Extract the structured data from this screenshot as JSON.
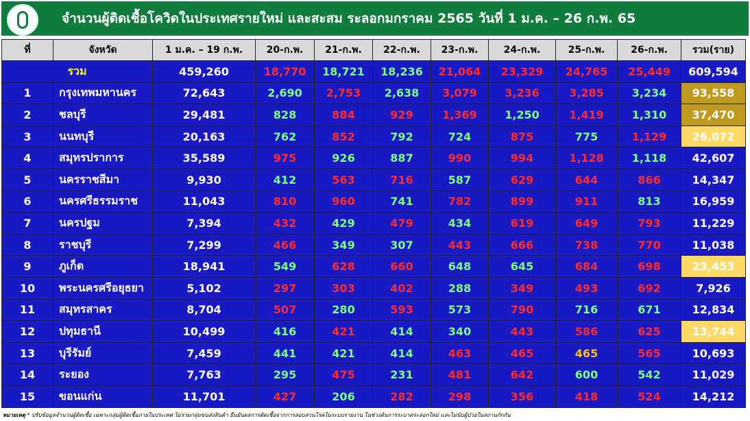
{
  "header": {
    "title": "จำนวนผู้ติดเชื้อโควิดในประเทศรายใหม่ และสะสม ระลอกมกราคม 2565 วันที่ 1 ม.ค. – 26 ก.พ. 65"
  },
  "table": {
    "columns": [
      "ที่",
      "จังหวัด",
      "1 ม.ค. – 19 ก.พ.",
      "20-ก.พ.",
      "21-ก.พ.",
      "22-ก.พ.",
      "23-ก.พ.",
      "24-ก.พ.",
      "25-ก.พ.",
      "26-ก.พ.",
      "รวม(ราย)"
    ],
    "total": {
      "name": "รวม",
      "name_color": "#ffff00",
      "cells": [
        "459,260",
        "18,770",
        "18,721",
        "18,236",
        "21,064",
        "23,329",
        "24,765",
        "25,449",
        "609,594"
      ],
      "colors": [
        "#ffffff",
        "#ff2a2a",
        "#7dff7d",
        "#7dff7d",
        "#ff2a2a",
        "#ff2a2a",
        "#ff2a2a",
        "#ff2a2a",
        "#ffffff"
      ]
    },
    "rows": [
      {
        "no": "1",
        "name": "กรุงเทพมหานคร",
        "cells": [
          "72,643",
          "2,690",
          "2,753",
          "2,638",
          "3,079",
          "3,236",
          "3,285",
          "3,234",
          "93,558"
        ],
        "colors": [
          "#ffffff",
          "#7dff7d",
          "#ff2a2a",
          "#7dff7d",
          "#ff2a2a",
          "#ff2a2a",
          "#ff2a2a",
          "#7dff7d",
          "#ffffff"
        ],
        "highlight": "#bf9a1e"
      },
      {
        "no": "2",
        "name": "ชลบุรี",
        "cells": [
          "29,481",
          "828",
          "884",
          "929",
          "1,369",
          "1,250",
          "1,419",
          "1,310",
          "37,470"
        ],
        "colors": [
          "#ffffff",
          "#7dff7d",
          "#ff2a2a",
          "#ff2a2a",
          "#ff2a2a",
          "#7dff7d",
          "#ff2a2a",
          "#7dff7d",
          "#ffffff"
        ],
        "highlight": "#bf9a1e"
      },
      {
        "no": "3",
        "name": "นนทบุรี",
        "cells": [
          "20,163",
          "762",
          "852",
          "792",
          "724",
          "875",
          "775",
          "1,129",
          "26,072"
        ],
        "colors": [
          "#ffffff",
          "#7dff7d",
          "#ff2a2a",
          "#7dff7d",
          "#7dff7d",
          "#ff2a2a",
          "#7dff7d",
          "#ff2a2a",
          "#ffffff"
        ],
        "highlight": "#ffd966"
      },
      {
        "no": "4",
        "name": "สมุทรปราการ",
        "cells": [
          "35,589",
          "975",
          "926",
          "887",
          "990",
          "994",
          "1,128",
          "1,118",
          "42,607"
        ],
        "colors": [
          "#ffffff",
          "#ff2a2a",
          "#7dff7d",
          "#7dff7d",
          "#ff2a2a",
          "#ff2a2a",
          "#ff2a2a",
          "#7dff7d",
          "#ffffff"
        ]
      },
      {
        "no": "5",
        "name": "นครราชสีมา",
        "cells": [
          "9,930",
          "412",
          "563",
          "716",
          "587",
          "629",
          "644",
          "866",
          "14,347"
        ],
        "colors": [
          "#ffffff",
          "#7dff7d",
          "#ff2a2a",
          "#ff2a2a",
          "#7dff7d",
          "#ff2a2a",
          "#ff2a2a",
          "#ff2a2a",
          "#ffffff"
        ]
      },
      {
        "no": "6",
        "name": "นครศรีธรรมราช",
        "cells": [
          "11,043",
          "810",
          "960",
          "741",
          "782",
          "899",
          "911",
          "813",
          "16,959"
        ],
        "colors": [
          "#ffffff",
          "#ff2a2a",
          "#ff2a2a",
          "#7dff7d",
          "#ff2a2a",
          "#ff2a2a",
          "#ff2a2a",
          "#7dff7d",
          "#ffffff"
        ]
      },
      {
        "no": "7",
        "name": "นครปฐม",
        "cells": [
          "7,394",
          "432",
          "429",
          "479",
          "434",
          "619",
          "649",
          "793",
          "11,229"
        ],
        "colors": [
          "#ffffff",
          "#ff2a2a",
          "#7dff7d",
          "#ff2a2a",
          "#7dff7d",
          "#ff2a2a",
          "#ff2a2a",
          "#ff2a2a",
          "#ffffff"
        ]
      },
      {
        "no": "8",
        "name": "ราชบุรี",
        "cells": [
          "7,299",
          "466",
          "349",
          "307",
          "443",
          "666",
          "738",
          "770",
          "11,038"
        ],
        "colors": [
          "#ffffff",
          "#ff2a2a",
          "#7dff7d",
          "#7dff7d",
          "#ff2a2a",
          "#ff2a2a",
          "#ff2a2a",
          "#ff2a2a",
          "#ffffff"
        ]
      },
      {
        "no": "9",
        "name": "ภูเก็ต",
        "cells": [
          "18,941",
          "549",
          "628",
          "660",
          "648",
          "645",
          "684",
          "698",
          "23,453"
        ],
        "colors": [
          "#ffffff",
          "#7dff7d",
          "#ff2a2a",
          "#ff2a2a",
          "#7dff7d",
          "#7dff7d",
          "#ff2a2a",
          "#ff2a2a",
          "#ffffff"
        ],
        "highlight": "#ffd966"
      },
      {
        "no": "10",
        "name": "พระนครศรีอยุธยา",
        "cells": [
          "5,102",
          "297",
          "303",
          "402",
          "288",
          "349",
          "493",
          "692",
          "7,926"
        ],
        "colors": [
          "#ffffff",
          "#ff2a2a",
          "#ff2a2a",
          "#ff2a2a",
          "#7dff7d",
          "#ff2a2a",
          "#ff2a2a",
          "#ff2a2a",
          "#ffffff"
        ]
      },
      {
        "no": "11",
        "name": "สมุทรสาคร",
        "cells": [
          "8,704",
          "507",
          "280",
          "593",
          "573",
          "790",
          "716",
          "671",
          "12,834"
        ],
        "colors": [
          "#ffffff",
          "#ff2a2a",
          "#7dff7d",
          "#ff2a2a",
          "#7dff7d",
          "#ff2a2a",
          "#7dff7d",
          "#7dff7d",
          "#ffffff"
        ]
      },
      {
        "no": "12",
        "name": "ปทุมธานี",
        "cells": [
          "10,499",
          "416",
          "421",
          "414",
          "340",
          "443",
          "586",
          "625",
          "13,744"
        ],
        "colors": [
          "#ffffff",
          "#7dff7d",
          "#ff2a2a",
          "#7dff7d",
          "#7dff7d",
          "#ff2a2a",
          "#ff2a2a",
          "#ff2a2a",
          "#ffffff"
        ],
        "highlight": "#ffd966"
      },
      {
        "no": "13",
        "name": "บุรีรัมย์",
        "cells": [
          "7,459",
          "441",
          "421",
          "414",
          "463",
          "465",
          "465",
          "565",
          "10,693"
        ],
        "colors": [
          "#ffffff",
          "#7dff7d",
          "#7dff7d",
          "#7dff7d",
          "#ff2a2a",
          "#ff2a2a",
          "#ffc000",
          "#ff2a2a",
          "#ffffff"
        ]
      },
      {
        "no": "14",
        "name": "ระยอง",
        "cells": [
          "7,763",
          "295",
          "475",
          "231",
          "481",
          "642",
          "600",
          "542",
          "11,029"
        ],
        "colors": [
          "#ffffff",
          "#7dff7d",
          "#ff2a2a",
          "#7dff7d",
          "#ff2a2a",
          "#ff2a2a",
          "#7dff7d",
          "#7dff7d",
          "#ffffff"
        ]
      },
      {
        "no": "15",
        "name": "ขอนแก่น",
        "cells": [
          "11,701",
          "427",
          "206",
          "282",
          "298",
          "356",
          "418",
          "524",
          "14,212"
        ],
        "colors": [
          "#ffffff",
          "#ff2a2a",
          "#7dff7d",
          "#ff2a2a",
          "#ff2a2a",
          "#ff2a2a",
          "#ff2a2a",
          "#ff2a2a",
          "#ffffff"
        ]
      }
    ]
  },
  "footer": {
    "label": "หมายเหตุ",
    "note": "* ปรับข้อมูลจำนวนผู้ติดเชื้อ เฉพาะกลุ่มผู้ติดเชื้อภายในประเทศ ไม่รวมกลุ่มขนส่งสินค้า ยืนยันผลการติดเชื้อจากการสอบสวนโรคในระบบรายงาน ในช่วงต้นการระบาดระลอกใหม่ และไม่นับผู้ป่วยในสถานกักกัน"
  }
}
